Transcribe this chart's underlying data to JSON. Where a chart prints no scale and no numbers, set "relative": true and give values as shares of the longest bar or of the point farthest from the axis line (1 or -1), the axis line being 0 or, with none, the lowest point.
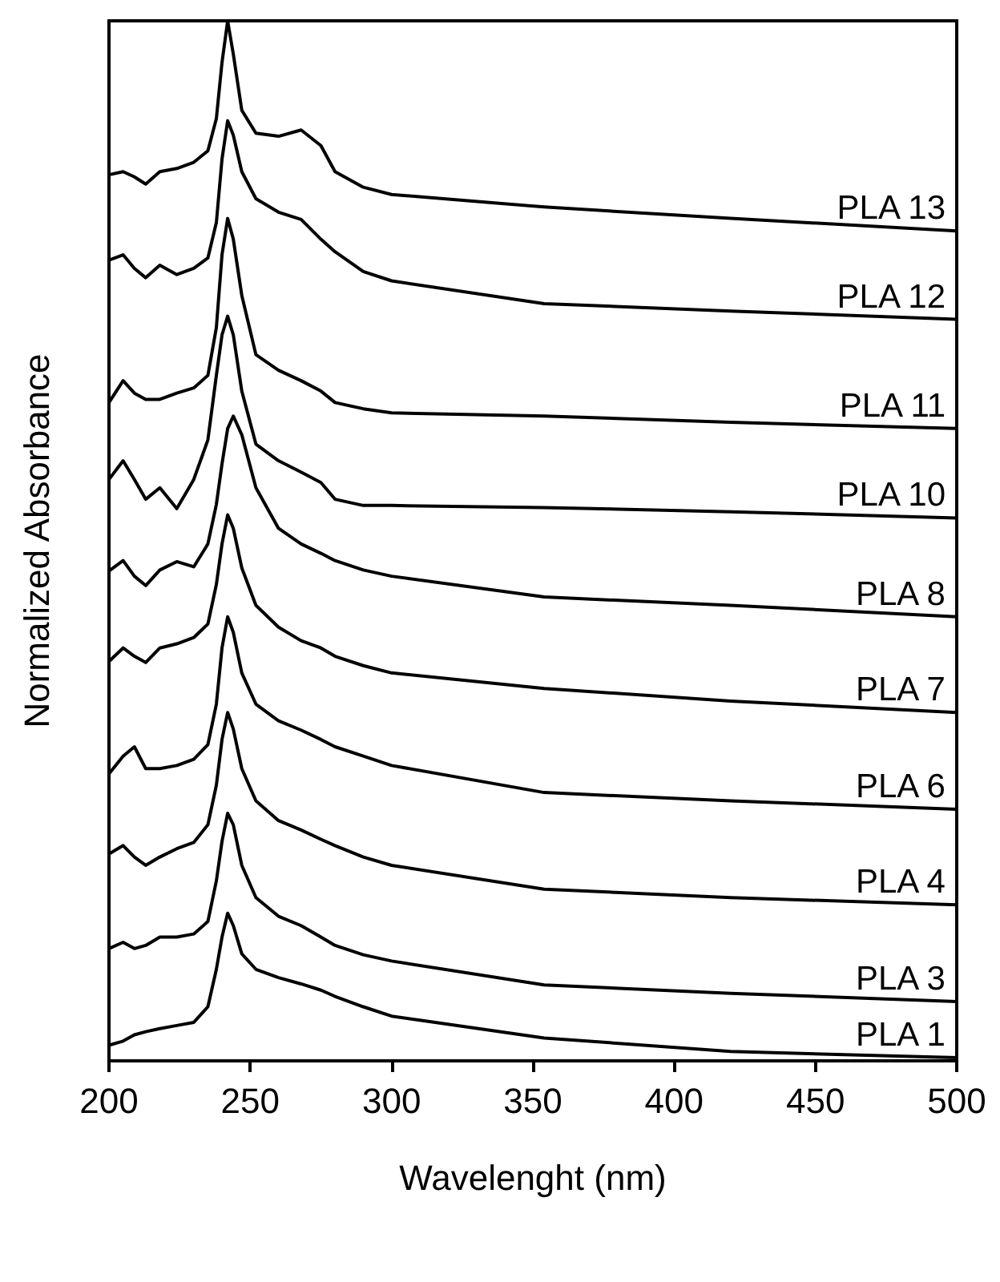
{
  "chart_data": {
    "type": "line",
    "relative": true,
    "xlabel": "Wavelenght (nm)",
    "ylabel": "Normalized Absorbance",
    "xlim": [
      200,
      500
    ],
    "xticks": [
      200,
      250,
      300,
      350,
      400,
      450,
      500
    ],
    "grid": false,
    "legend": false,
    "marker": "none",
    "line_style": "solid",
    "x": [
      200,
      205,
      209,
      213,
      218,
      224,
      230,
      235,
      238,
      240,
      242,
      244,
      247,
      252,
      260,
      268,
      275,
      280,
      290,
      300,
      354,
      420,
      500
    ],
    "series": [
      {
        "name": "PLA 13",
        "color": "#000000",
        "values": [
          0.852,
          0.855,
          0.85,
          0.843,
          0.855,
          0.858,
          0.864,
          0.875,
          0.906,
          0.96,
          1,
          0.968,
          0.914,
          0.892,
          0.889,
          0.895,
          0.88,
          0.855,
          0.84,
          0.833,
          0.821,
          0.81,
          0.798
        ]
      },
      {
        "name": "PLA 12",
        "color": "#000000",
        "values": [
          0.77,
          0.775,
          0.762,
          0.753,
          0.765,
          0.756,
          0.762,
          0.772,
          0.806,
          0.867,
          0.904,
          0.89,
          0.855,
          0.829,
          0.816,
          0.809,
          0.79,
          0.778,
          0.759,
          0.75,
          0.728,
          0.721,
          0.713
        ]
      },
      {
        "name": "PLA 11",
        "color": "#000000",
        "values": [
          0.633,
          0.654,
          0.642,
          0.636,
          0.636,
          0.642,
          0.647,
          0.659,
          0.705,
          0.775,
          0.81,
          0.79,
          0.736,
          0.679,
          0.664,
          0.654,
          0.644,
          0.633,
          0.627,
          0.623,
          0.62,
          0.614,
          0.608
        ]
      },
      {
        "name": "PLA 10",
        "color": "#000000",
        "values": [
          0.559,
          0.577,
          0.559,
          0.54,
          0.551,
          0.531,
          0.559,
          0.597,
          0.659,
          0.698,
          0.716,
          0.698,
          0.644,
          0.593,
          0.577,
          0.566,
          0.556,
          0.54,
          0.534,
          0.534,
          0.532,
          0.528,
          0.522
        ]
      },
      {
        "name": "PLA 8",
        "color": "#000000",
        "values": [
          0.471,
          0.481,
          0.466,
          0.457,
          0.472,
          0.48,
          0.475,
          0.497,
          0.535,
          0.574,
          0.608,
          0.62,
          0.602,
          0.551,
          0.512,
          0.497,
          0.488,
          0.481,
          0.472,
          0.466,
          0.446,
          0.438,
          0.427
        ]
      },
      {
        "name": "PLA 7",
        "color": "#000000",
        "values": [
          0.384,
          0.397,
          0.389,
          0.383,
          0.397,
          0.401,
          0.407,
          0.42,
          0.458,
          0.497,
          0.525,
          0.512,
          0.474,
          0.438,
          0.417,
          0.404,
          0.397,
          0.389,
          0.38,
          0.373,
          0.358,
          0.346,
          0.335
        ]
      },
      {
        "name": "PLA 6",
        "color": "#000000",
        "values": [
          0.276,
          0.293,
          0.302,
          0.281,
          0.281,
          0.284,
          0.29,
          0.304,
          0.343,
          0.397,
          0.427,
          0.412,
          0.373,
          0.343,
          0.327,
          0.318,
          0.309,
          0.302,
          0.293,
          0.284,
          0.258,
          0.25,
          0.242
        ]
      },
      {
        "name": "PLA 4",
        "color": "#000000",
        "values": [
          0.199,
          0.207,
          0.196,
          0.188,
          0.196,
          0.204,
          0.21,
          0.227,
          0.265,
          0.309,
          0.335,
          0.319,
          0.281,
          0.25,
          0.231,
          0.222,
          0.213,
          0.207,
          0.196,
          0.188,
          0.165,
          0.157,
          0.15
        ]
      },
      {
        "name": "PLA 3",
        "color": "#000000",
        "values": [
          0.108,
          0.114,
          0.108,
          0.111,
          0.119,
          0.119,
          0.122,
          0.134,
          0.173,
          0.211,
          0.238,
          0.227,
          0.188,
          0.157,
          0.139,
          0.13,
          0.119,
          0.111,
          0.102,
          0.096,
          0.073,
          0.065,
          0.057
        ]
      },
      {
        "name": "PLA 1",
        "color": "#000000",
        "values": [
          0.015,
          0.019,
          0.025,
          0.028,
          0.031,
          0.034,
          0.037,
          0.052,
          0.088,
          0.119,
          0.142,
          0.13,
          0.103,
          0.088,
          0.08,
          0.074,
          0.068,
          0.062,
          0.052,
          0.043,
          0.022,
          0.009,
          0.003
        ]
      }
    ]
  }
}
